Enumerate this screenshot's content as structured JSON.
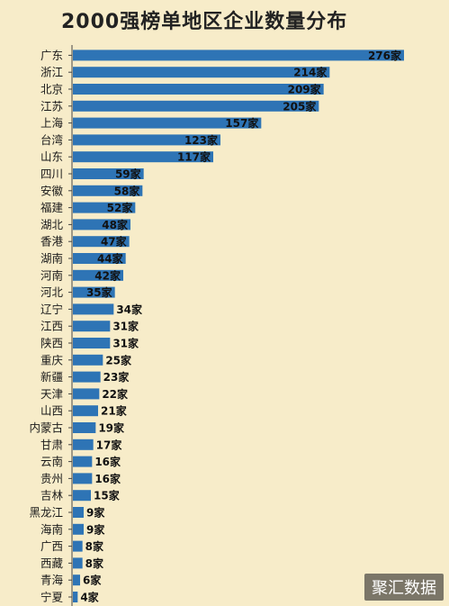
{
  "chart_data": {
    "type": "bar",
    "orientation": "horizontal",
    "title": "2000强榜单地区企业数量分布",
    "value_suffix": "家",
    "categories": [
      "广东",
      "浙江",
      "北京",
      "江苏",
      "上海",
      "台湾",
      "山东",
      "四川",
      "安徽",
      "福建",
      "湖北",
      "香港",
      "湖南",
      "河南",
      "河北",
      "辽宁",
      "江西",
      "陕西",
      "重庆",
      "新疆",
      "天津",
      "山西",
      "内蒙古",
      "甘肃",
      "云南",
      "贵州",
      "吉林",
      "黑龙江",
      "海南",
      "广西",
      "西藏",
      "青海",
      "宁夏"
    ],
    "values": [
      276,
      214,
      209,
      205,
      157,
      123,
      117,
      59,
      58,
      52,
      48,
      47,
      44,
      42,
      35,
      34,
      31,
      31,
      25,
      23,
      22,
      21,
      19,
      17,
      16,
      16,
      15,
      9,
      9,
      8,
      8,
      6,
      4
    ],
    "data_labels": [
      "276家",
      "214家",
      "209家",
      "205家",
      "157家",
      "123家",
      "117家",
      "59家",
      "58家",
      "52家",
      "48家",
      "47家",
      "44家",
      "42家",
      "35家",
      "34家",
      "31家",
      "31家",
      "25家",
      "23家",
      "22家",
      "21家",
      "19家",
      "17家",
      "16家",
      "16家",
      "15家",
      "9家",
      "9家",
      "8家",
      "8家",
      "6家",
      "4家"
    ],
    "bar_color": "#2e74b5",
    "background": "#f7ecc9"
  },
  "watermark": "聚汇数据"
}
